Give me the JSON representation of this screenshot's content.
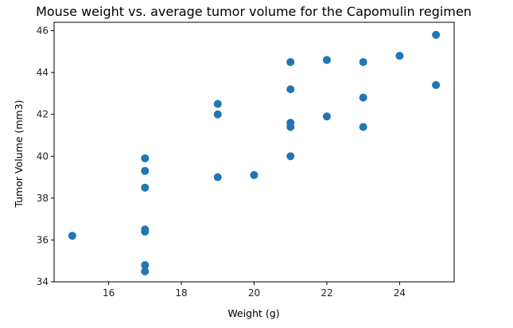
{
  "chart_data": {
    "type": "scatter",
    "title": "Mouse weight vs. average tumor volume for the Capomulin regimen",
    "xlabel": "Weight (g)",
    "ylabel": "Tumor Volume (mm3)",
    "xlim": [
      14.5,
      25.5
    ],
    "ylim": [
      34.0,
      46.4
    ],
    "xticks": [
      16,
      18,
      20,
      22,
      24
    ],
    "yticks": [
      34,
      36,
      38,
      40,
      42,
      44,
      46
    ],
    "grid": false,
    "legend": "none",
    "marker_color": "#1f77b4",
    "points": [
      {
        "x": 15,
        "y": 36.2
      },
      {
        "x": 17,
        "y": 39.9
      },
      {
        "x": 17,
        "y": 39.3
      },
      {
        "x": 17,
        "y": 38.5
      },
      {
        "x": 17,
        "y": 36.5
      },
      {
        "x": 17,
        "y": 36.4
      },
      {
        "x": 17,
        "y": 34.8
      },
      {
        "x": 17,
        "y": 34.5
      },
      {
        "x": 19,
        "y": 42.5
      },
      {
        "x": 19,
        "y": 42.0
      },
      {
        "x": 19,
        "y": 39.0
      },
      {
        "x": 20,
        "y": 39.1
      },
      {
        "x": 21,
        "y": 44.5
      },
      {
        "x": 21,
        "y": 43.2
      },
      {
        "x": 21,
        "y": 41.6
      },
      {
        "x": 21,
        "y": 41.4
      },
      {
        "x": 21,
        "y": 40.0
      },
      {
        "x": 22,
        "y": 44.6
      },
      {
        "x": 22,
        "y": 41.9
      },
      {
        "x": 23,
        "y": 44.5
      },
      {
        "x": 23,
        "y": 42.8
      },
      {
        "x": 23,
        "y": 41.4
      },
      {
        "x": 24,
        "y": 44.8
      },
      {
        "x": 25,
        "y": 45.8
      },
      {
        "x": 25,
        "y": 43.4
      }
    ]
  }
}
